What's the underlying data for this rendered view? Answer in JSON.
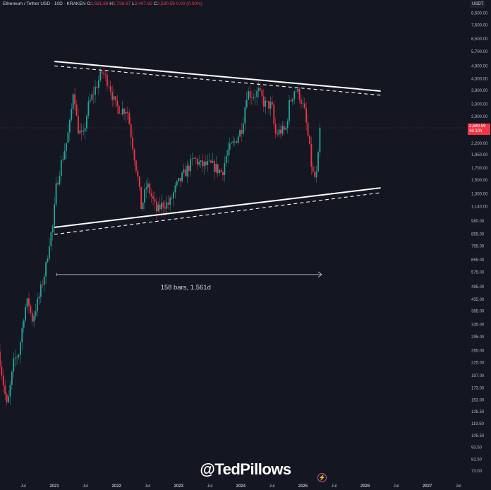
{
  "header": {
    "symbol": "Ethereum / Tether USD · 10D · KRAKEN",
    "open_label": "O",
    "open": "2,581.88",
    "high_label": "H",
    "high": "2,736.67",
    "low_label": "L",
    "low": "2,407.62",
    "close_label": "C",
    "close": "2,580.59",
    "change": "0.00 (0.00%)"
  },
  "currency": "USDT",
  "last_price": {
    "value": "2,580.59",
    "countdown": "4d 10h"
  },
  "watermark": "@TedPillows",
  "colors": {
    "background": "#141722",
    "up": "#26a69a",
    "down": "#f23645",
    "line": "#ffffff"
  },
  "chart_data": {
    "type": "candlestick",
    "title": "Ethereum / Tether USD · 10D · KRAKEN",
    "yscale": "log",
    "ylim": [
      73,
      8500
    ],
    "y_ticks": [
      "8,500.00",
      "7,500.00",
      "6,500.00",
      "5,700.00",
      "4,900.00",
      "4,300.00",
      "3,800.00",
      "3,300.00",
      "2,900.00",
      "2,200.00",
      "1,950.00",
      "1,700.00",
      "1,500.00",
      "1,300.00",
      "1,140.00",
      "980.00",
      "855.00",
      "755.00",
      "655.00",
      "575.00",
      "495.00",
      "435.00",
      "385.00",
      "335.00",
      "295.00",
      "255.00",
      "225.00",
      "197.00",
      "173.00",
      "153.00",
      "135.50",
      "119.50",
      "105.50",
      "93.50",
      "82.50",
      "73.00"
    ],
    "x_ticks": [
      {
        "label": "Jul",
        "year": 2020.5
      },
      {
        "label": "2021",
        "year": 2021.0
      },
      {
        "label": "Jul",
        "year": 2021.5
      },
      {
        "label": "2022",
        "year": 2022.0
      },
      {
        "label": "Jul",
        "year": 2022.5
      },
      {
        "label": "2023",
        "year": 2023.0
      },
      {
        "label": "Jul",
        "year": 2023.5
      },
      {
        "label": "2024",
        "year": 2024.0
      },
      {
        "label": "Jul",
        "year": 2024.5
      },
      {
        "label": "2025",
        "year": 2025.0
      },
      {
        "label": "Jul",
        "year": 2025.5
      },
      {
        "label": "2026",
        "year": 2026.0
      },
      {
        "label": "Jul",
        "year": 2026.5
      },
      {
        "label": "2027",
        "year": 2027.0
      },
      {
        "label": "Jul",
        "year": 2027.5
      }
    ],
    "approx_close_path": [
      [
        2020.125,
        230
      ],
      [
        2020.24,
        140
      ],
      [
        2020.35,
        230
      ],
      [
        2020.43,
        250
      ],
      [
        2020.52,
        390
      ],
      [
        2020.58,
        430
      ],
      [
        2020.64,
        350
      ],
      [
        2020.75,
        440
      ],
      [
        2020.86,
        600
      ],
      [
        2020.92,
        800
      ],
      [
        2020.98,
        940
      ],
      [
        2021.03,
        1400
      ],
      [
        2021.09,
        1700
      ],
      [
        2021.2,
        2250
      ],
      [
        2021.26,
        2800
      ],
      [
        2021.31,
        4000
      ],
      [
        2021.37,
        2600
      ],
      [
        2021.46,
        2300
      ],
      [
        2021.54,
        3200
      ],
      [
        2021.66,
        3900
      ],
      [
        2021.77,
        4600
      ],
      [
        2021.88,
        4100
      ],
      [
        2021.98,
        3250
      ],
      [
        2022.08,
        3100
      ],
      [
        2022.17,
        3150
      ],
      [
        2022.25,
        2250
      ],
      [
        2022.34,
        1550
      ],
      [
        2022.4,
        1120
      ],
      [
        2022.49,
        1440
      ],
      [
        2022.57,
        1250
      ],
      [
        2022.65,
        1080
      ],
      [
        2022.74,
        1170
      ],
      [
        2022.85,
        1170
      ],
      [
        2022.96,
        1400
      ],
      [
        2023.1,
        1620
      ],
      [
        2023.25,
        1870
      ],
      [
        2023.36,
        1750
      ],
      [
        2023.53,
        1750
      ],
      [
        2023.7,
        1620
      ],
      [
        2023.78,
        2000
      ],
      [
        2023.91,
        2250
      ],
      [
        2024.02,
        2600
      ],
      [
        2024.1,
        3750
      ],
      [
        2024.19,
        3600
      ],
      [
        2024.29,
        3750
      ],
      [
        2024.38,
        3300
      ],
      [
        2024.5,
        3250
      ],
      [
        2024.55,
        2400
      ],
      [
        2024.64,
        2500
      ],
      [
        2024.72,
        2500
      ],
      [
        2024.78,
        3300
      ],
      [
        2024.87,
        3880
      ],
      [
        2024.95,
        3600
      ],
      [
        2025.03,
        3000
      ],
      [
        2025.1,
        2150
      ],
      [
        2025.15,
        1620
      ],
      [
        2025.21,
        1500
      ],
      [
        2025.29,
        2580.59
      ]
    ],
    "trendlines": [
      {
        "name": "upper-resistance",
        "style": "solid",
        "from": [
          2021.0,
          5140
        ],
        "to": [
          2026.25,
          3780
        ]
      },
      {
        "name": "upper-resistance-dashed",
        "style": "dashed",
        "from": [
          2021.0,
          4908
        ],
        "to": [
          2026.25,
          3619
        ]
      },
      {
        "name": "lower-support",
        "style": "solid",
        "from": [
          2021.0,
          918
        ],
        "to": [
          2026.25,
          1383
        ]
      },
      {
        "name": "lower-support-dashed",
        "style": "dashed",
        "from": [
          2021.0,
          853
        ],
        "to": [
          2026.25,
          1315
        ]
      }
    ],
    "measure": {
      "from": [
        2021.04,
        562
      ],
      "to": [
        2025.3,
        562
      ],
      "label": "158 bars, 1,561d"
    },
    "last_price": 2580.59
  }
}
